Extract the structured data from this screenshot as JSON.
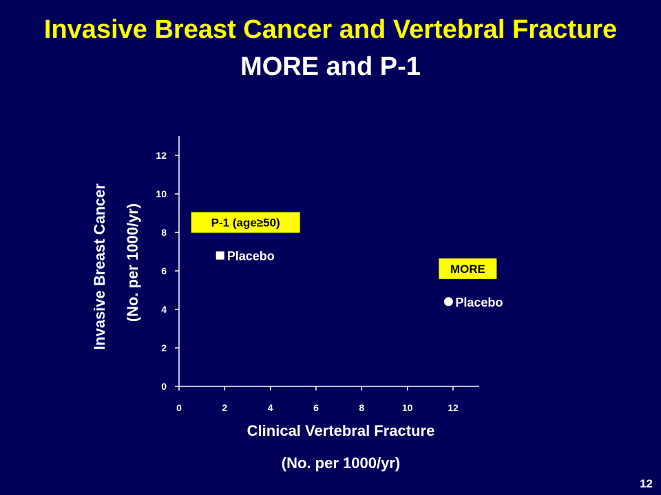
{
  "slide": {
    "title": "Invasive Breast Cancer and Vertebral Fracture",
    "subtitle": "MORE and P-1",
    "page_number": "12"
  },
  "chart_data": {
    "type": "scatter",
    "ylabel_line1": "Invasive Breast Cancer",
    "ylabel_line2": "(No. per 1000/yr)",
    "xlabel_line1": "Clinical Vertebral Fracture",
    "xlabel_line2": "(No. per 1000/yr)",
    "xlim": [
      0,
      12
    ],
    "ylim": [
      0,
      13
    ],
    "xticks": [
      0,
      2,
      4,
      6,
      8,
      10,
      12
    ],
    "yticks": [
      0,
      2,
      4,
      6,
      8,
      10,
      12
    ],
    "grid": false,
    "colors": {
      "background": "#00005a",
      "title": "#ffff00",
      "box": "#ffff00",
      "marker": "#ffffff"
    },
    "points": [
      {
        "label": "Placebo",
        "marker": "square",
        "x": 1.8,
        "y": 6.8,
        "group": "P-1 (age≥50)"
      },
      {
        "label": "Placebo",
        "marker": "circle",
        "x": 11.8,
        "y": 4.4,
        "group": "MORE"
      }
    ]
  }
}
